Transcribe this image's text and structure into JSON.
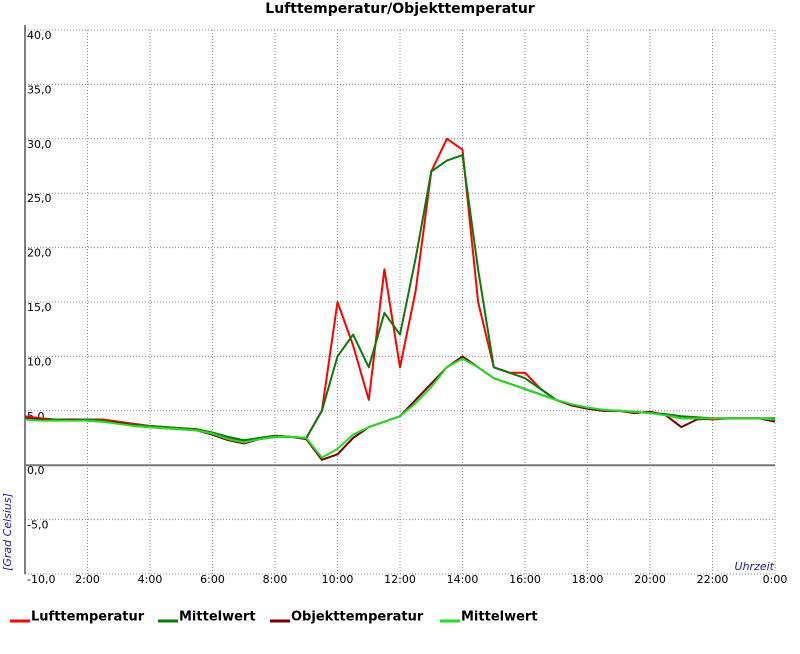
{
  "chart_data": {
    "type": "line",
    "title": "Lufttemperatur/Objekttemperatur",
    "y_label": "[Grad Celsius]",
    "x_label": "Uhrzeit",
    "x": [
      0,
      0.5,
      1,
      1.5,
      2,
      2.5,
      3,
      3.5,
      4,
      4.5,
      5,
      5.5,
      6,
      6.5,
      7,
      7.5,
      8,
      8.5,
      9,
      9.5,
      10,
      10.5,
      11,
      11.5,
      12,
      12.5,
      13,
      13.5,
      14,
      14.5,
      15,
      15.5,
      16,
      16.5,
      17,
      17.5,
      18,
      18.5,
      19,
      19.5,
      20,
      20.5,
      21,
      21.5,
      22,
      22.5,
      23,
      23.5,
      24
    ],
    "xlim": [
      0,
      24
    ],
    "xticks": [
      {
        "value": 2,
        "label": "2:00"
      },
      {
        "value": 4,
        "label": "4:00"
      },
      {
        "value": 6,
        "label": "6:00"
      },
      {
        "value": 8,
        "label": "8:00"
      },
      {
        "value": 10,
        "label": "10:00"
      },
      {
        "value": 12,
        "label": "12:00"
      },
      {
        "value": 14,
        "label": "14:00"
      },
      {
        "value": 16,
        "label": "16:00"
      },
      {
        "value": 18,
        "label": "18:00"
      },
      {
        "value": 20,
        "label": "20:00"
      },
      {
        "value": 22,
        "label": "22:00"
      },
      {
        "value": 24,
        "label": "0:00"
      }
    ],
    "ylim": [
      -10,
      40
    ],
    "yticks": [
      {
        "value": -10,
        "label": "-10,0"
      },
      {
        "value": -5,
        "label": "-5,0"
      },
      {
        "value": 0,
        "label": "0,0"
      },
      {
        "value": 5,
        "label": "5,0"
      },
      {
        "value": 10,
        "label": "10,0"
      },
      {
        "value": 15,
        "label": "15,0"
      },
      {
        "value": 20,
        "label": "20,0"
      },
      {
        "value": 25,
        "label": "25,0"
      },
      {
        "value": 30,
        "label": "30,0"
      },
      {
        "value": 35,
        "label": "35,0"
      },
      {
        "value": 40,
        "label": "40,0"
      }
    ],
    "grid": true,
    "series": [
      {
        "name": "Lufttemperatur",
        "color": "#ff0000",
        "values": [
          4.5,
          4.3,
          4.2,
          4.2,
          4.2,
          4.2,
          4.0,
          3.8,
          3.6,
          3.5,
          3.4,
          3.3,
          3.0,
          2.5,
          2.2,
          2.5,
          2.7,
          2.6,
          2.5,
          5.0,
          15.0,
          11.0,
          6.0,
          18.0,
          9.0,
          16.0,
          27.0,
          30.0,
          29.0,
          15.0,
          9.0,
          8.5,
          8.5,
          7.0,
          6.0,
          5.5,
          5.2,
          5.0,
          5.0,
          4.8,
          4.9,
          4.6,
          4.3,
          4.3,
          4.2,
          4.3,
          4.3,
          4.3,
          4.2
        ]
      },
      {
        "name": "Mittelwert",
        "color": "#0a7a0a",
        "values": [
          4.3,
          4.2,
          4.2,
          4.2,
          4.2,
          4.1,
          3.9,
          3.7,
          3.6,
          3.5,
          3.4,
          3.3,
          3.0,
          2.6,
          2.3,
          2.5,
          2.7,
          2.6,
          2.5,
          5.0,
          10.0,
          12.0,
          9.0,
          14.0,
          12.0,
          19.0,
          27.0,
          28.0,
          28.5,
          18.0,
          9.0,
          8.5,
          8.0,
          7.0,
          6.0,
          5.5,
          5.2,
          5.0,
          5.0,
          4.9,
          4.8,
          4.7,
          4.5,
          4.4,
          4.3,
          4.3,
          4.3,
          4.3,
          4.3
        ]
      },
      {
        "name": "Objekttemperatur",
        "color": "#7a0000",
        "values": [
          4.3,
          4.2,
          4.1,
          4.2,
          4.1,
          4.0,
          3.9,
          3.6,
          3.5,
          3.4,
          3.3,
          3.2,
          2.8,
          2.3,
          2.0,
          2.4,
          2.6,
          2.6,
          2.4,
          0.5,
          1.0,
          2.5,
          3.5,
          4.0,
          4.5,
          6.0,
          7.5,
          9.0,
          10.0,
          9.0,
          8.0,
          7.5,
          7.0,
          6.5,
          6.0,
          5.5,
          5.2,
          5.0,
          5.0,
          4.8,
          4.9,
          4.6,
          3.5,
          4.2,
          4.3,
          4.3,
          4.3,
          4.3,
          4.0
        ]
      },
      {
        "name": "Mittelwert",
        "color": "#22dd22",
        "values": [
          4.2,
          4.1,
          4.1,
          4.1,
          4.1,
          4.0,
          3.8,
          3.6,
          3.5,
          3.4,
          3.3,
          3.2,
          2.9,
          2.4,
          2.1,
          2.4,
          2.6,
          2.6,
          2.5,
          0.7,
          1.5,
          2.8,
          3.5,
          4.0,
          4.5,
          5.7,
          7.2,
          9.0,
          9.8,
          9.0,
          8.0,
          7.5,
          7.0,
          6.5,
          6.0,
          5.6,
          5.3,
          5.1,
          5.0,
          4.9,
          4.8,
          4.6,
          4.3,
          4.3,
          4.3,
          4.3,
          4.3,
          4.3,
          4.2
        ]
      }
    ]
  }
}
